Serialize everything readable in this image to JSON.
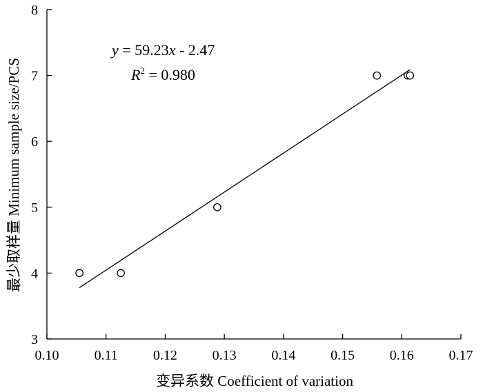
{
  "chart_data": {
    "type": "scatter",
    "xlabel": "变异系数  Coefficient of variation",
    "ylabel": "最少取样量 Minimum sample size/PCS",
    "xlim": [
      0.1,
      0.17
    ],
    "ylim": [
      3,
      8
    ],
    "xticks": [
      "0.10",
      "0.11",
      "0.12",
      "0.13",
      "0.14",
      "0.15",
      "0.16",
      "0.17"
    ],
    "yticks": [
      "3",
      "4",
      "5",
      "6",
      "7",
      "8"
    ],
    "grid": false,
    "marker": "open-circle",
    "points": [
      {
        "x": 0.1055,
        "y": 4
      },
      {
        "x": 0.1125,
        "y": 4
      },
      {
        "x": 0.1288,
        "y": 5
      },
      {
        "x": 0.1558,
        "y": 7
      },
      {
        "x": 0.161,
        "y": 7
      },
      {
        "x": 0.1614,
        "y": 7
      }
    ],
    "fit_line": {
      "slope": 59.23,
      "intercept": -2.47,
      "x_range": [
        0.1055,
        0.1614
      ]
    },
    "annotations": {
      "equation_y": "y",
      "equation_rest": " = 59.23",
      "equation_x": "x",
      "equation_tail": " - 2.47",
      "r2_R": "R",
      "r2_sup": "2",
      "r2_rest": " = 0.980"
    }
  }
}
